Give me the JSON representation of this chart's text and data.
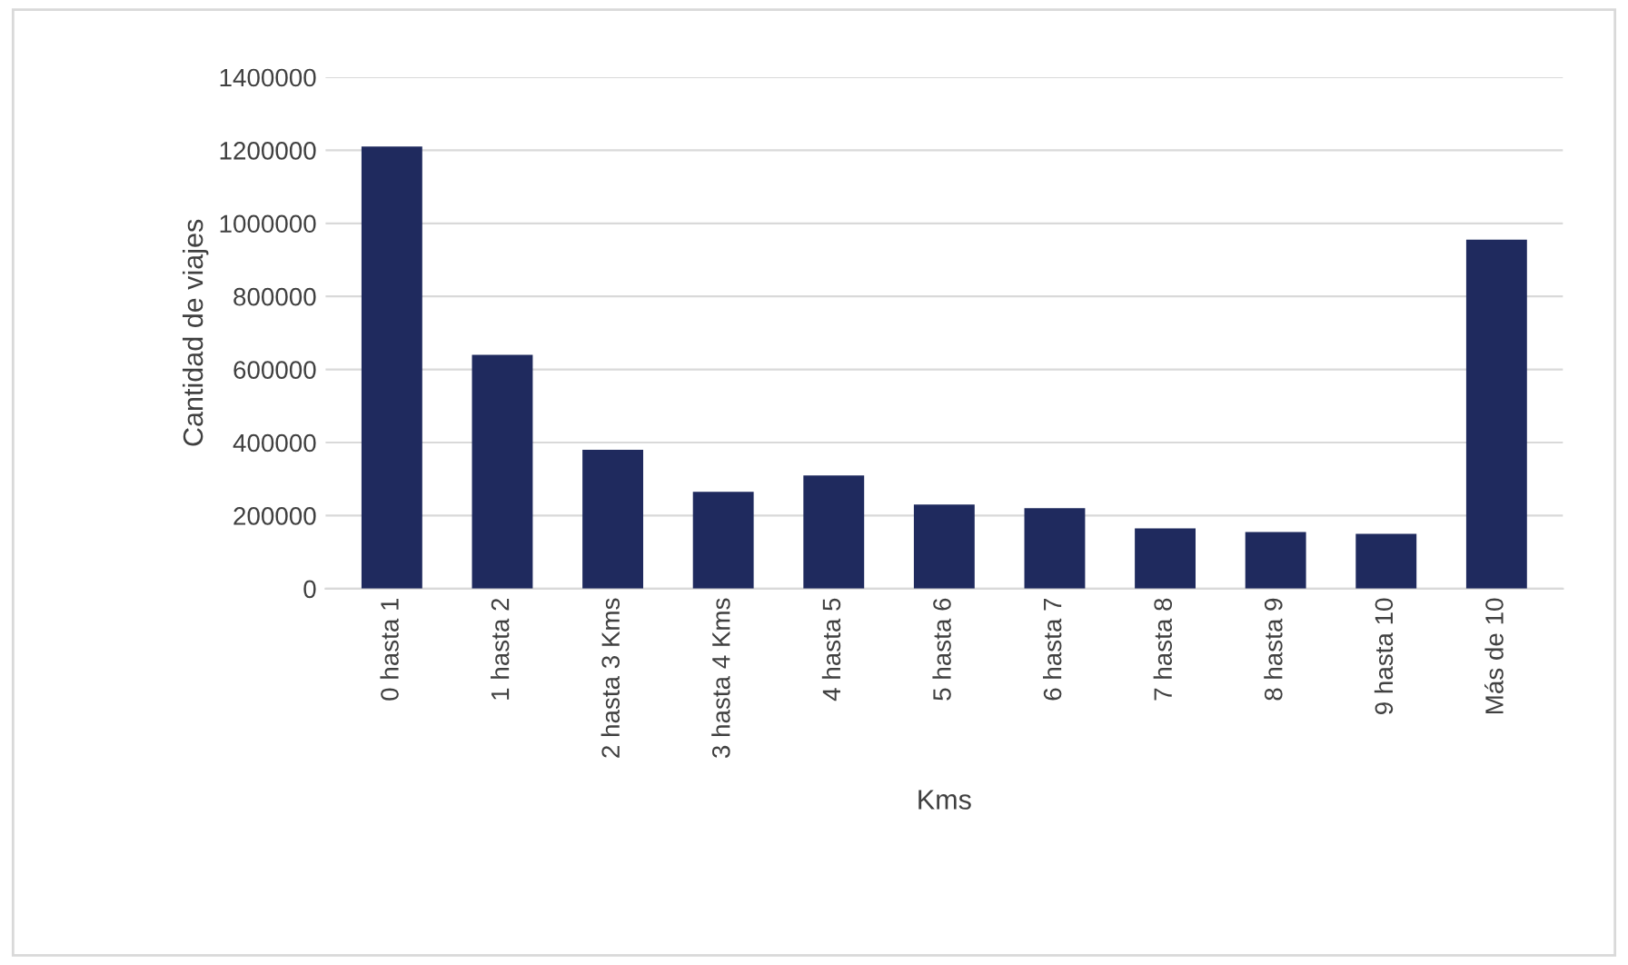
{
  "chart_data": {
    "type": "bar",
    "xlabel": "Kms",
    "ylabel": "Cantidad de viajes",
    "categories": [
      "0 hasta 1",
      "1 hasta 2",
      "2 hasta 3 Kms",
      "3 hasta 4 Kms",
      "4 hasta 5",
      "5 hasta 6",
      "6 hasta 7",
      "7 hasta 8",
      "8 hasta 9",
      "9 hasta 10",
      "Más de 10"
    ],
    "values": [
      1210000,
      640000,
      380000,
      265000,
      310000,
      230000,
      220000,
      165000,
      155000,
      150000,
      955000
    ],
    "color": "#1f2a5e",
    "ylim": [
      0,
      1400000
    ],
    "yticks": [
      0,
      200000,
      400000,
      600000,
      800000,
      1000000,
      1200000,
      1400000
    ],
    "grid": "y"
  }
}
